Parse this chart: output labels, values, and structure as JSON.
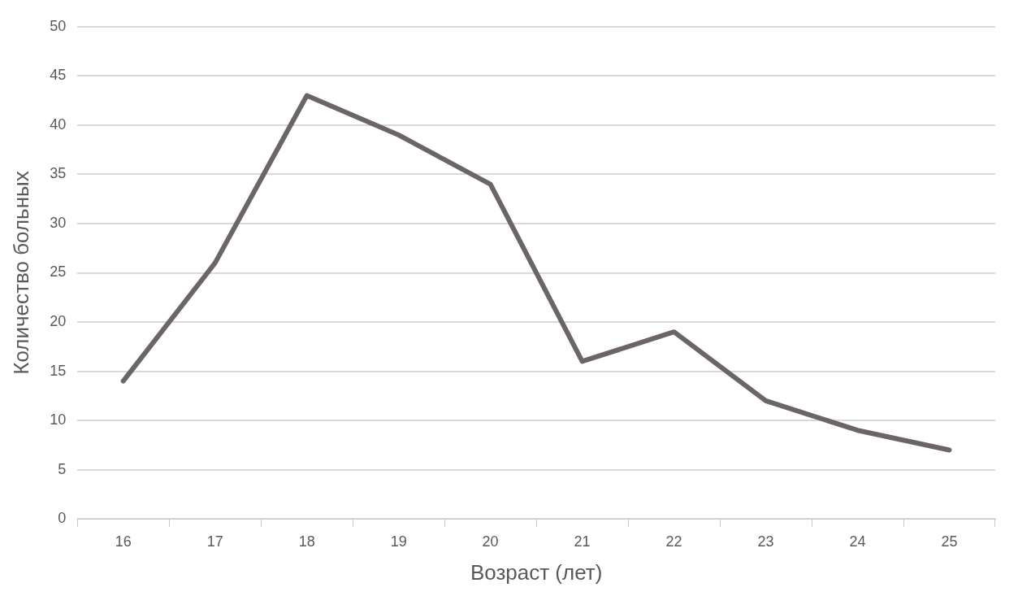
{
  "chart_data": {
    "type": "line",
    "xlabel": "Возраст (лет)",
    "ylabel": "Количество больных",
    "categories": [
      "16",
      "17",
      "18",
      "19",
      "20",
      "21",
      "22",
      "23",
      "24",
      "25"
    ],
    "series": [
      {
        "color": "#6b6566",
        "values": [
          14,
          26,
          43,
          39,
          34,
          16,
          19,
          12,
          9,
          7
        ]
      }
    ],
    "ylim": [
      0,
      50
    ],
    "yticks": [
      0,
      5,
      10,
      15,
      20,
      25,
      30,
      35,
      40,
      45,
      50
    ],
    "grid": "y",
    "legend": false,
    "marker": "none"
  }
}
